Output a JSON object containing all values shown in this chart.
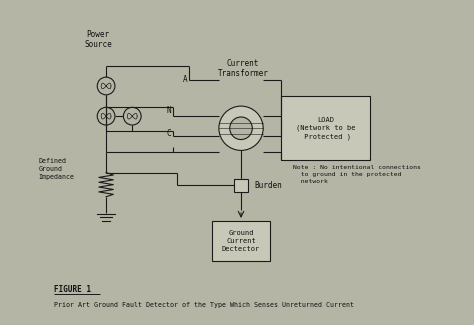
{
  "bg_color": "#b5b5a5",
  "fig_width": 4.74,
  "fig_height": 3.25,
  "dpi": 100,
  "title_text": "FIGURE 1",
  "caption_text": "Prior Art Ground Fault Detector of the Type Which Senses Unreturned Current",
  "labels": {
    "power_source": "Power\nSource",
    "current_transformer": "Current\nTransformer",
    "node_A": "A",
    "node_N": "N",
    "node_C": "C",
    "burden": "Burden",
    "gcd": "Ground\nCurrent\nDectector",
    "defined_ground": "Defined\nGround\nImpedance",
    "note": "Note : No intentional connections\n  to ground in the protected\n  network"
  },
  "line_color": "#1a1a1a",
  "text_color": "#111111",
  "box_color": "#c8c8b8"
}
